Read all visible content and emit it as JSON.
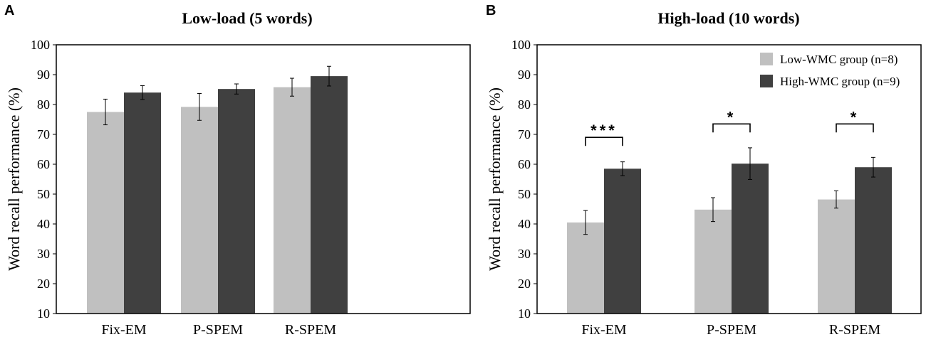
{
  "chart_data": [
    {
      "type": "bar",
      "panel_label": "A",
      "title": "Low-load (5 words)",
      "ylabel": "Word recall performance (%)",
      "xlabel": "",
      "ylim": [
        10,
        100
      ],
      "yticks": [
        10,
        20,
        30,
        40,
        50,
        60,
        70,
        80,
        90,
        100
      ],
      "categories": [
        "Fix-EM",
        "P-SPEM",
        "R-SPEM"
      ],
      "series": [
        {
          "name": "Low-WMC group (n=8)",
          "color": "#c0c0c0",
          "values": [
            77.5,
            79.2,
            85.8
          ],
          "errors": [
            4.3,
            4.5,
            3.0
          ]
        },
        {
          "name": "High-WMC group (n=9)",
          "color": "#404040",
          "values": [
            84.0,
            85.2,
            89.5
          ],
          "errors": [
            2.3,
            1.7,
            3.3
          ]
        }
      ],
      "significance": [],
      "legend": null
    },
    {
      "type": "bar",
      "panel_label": "B",
      "title": "High-load (10 words)",
      "ylabel": "Word recall performance (%)",
      "xlabel": "",
      "ylim": [
        10,
        100
      ],
      "yticks": [
        10,
        20,
        30,
        40,
        50,
        60,
        70,
        80,
        90,
        100
      ],
      "categories": [
        "Fix-EM",
        "P-SPEM",
        "R-SPEM"
      ],
      "series": [
        {
          "name": "Low-WMC group (n=8)",
          "color": "#c0c0c0",
          "values": [
            40.5,
            44.8,
            48.2
          ],
          "errors": [
            4.0,
            4.0,
            2.9
          ]
        },
        {
          "name": "High-WMC group (n=9)",
          "color": "#404040",
          "values": [
            58.5,
            60.2,
            59.0
          ],
          "errors": [
            2.3,
            5.3,
            3.3
          ]
        }
      ],
      "significance": [
        {
          "category": "Fix-EM",
          "label": "***",
          "bracket_y": 69
        },
        {
          "category": "P-SPEM",
          "label": "*",
          "bracket_y": 73.5
        },
        {
          "category": "R-SPEM",
          "label": "*",
          "bracket_y": 73.5
        }
      ],
      "legend": "top-right"
    }
  ]
}
